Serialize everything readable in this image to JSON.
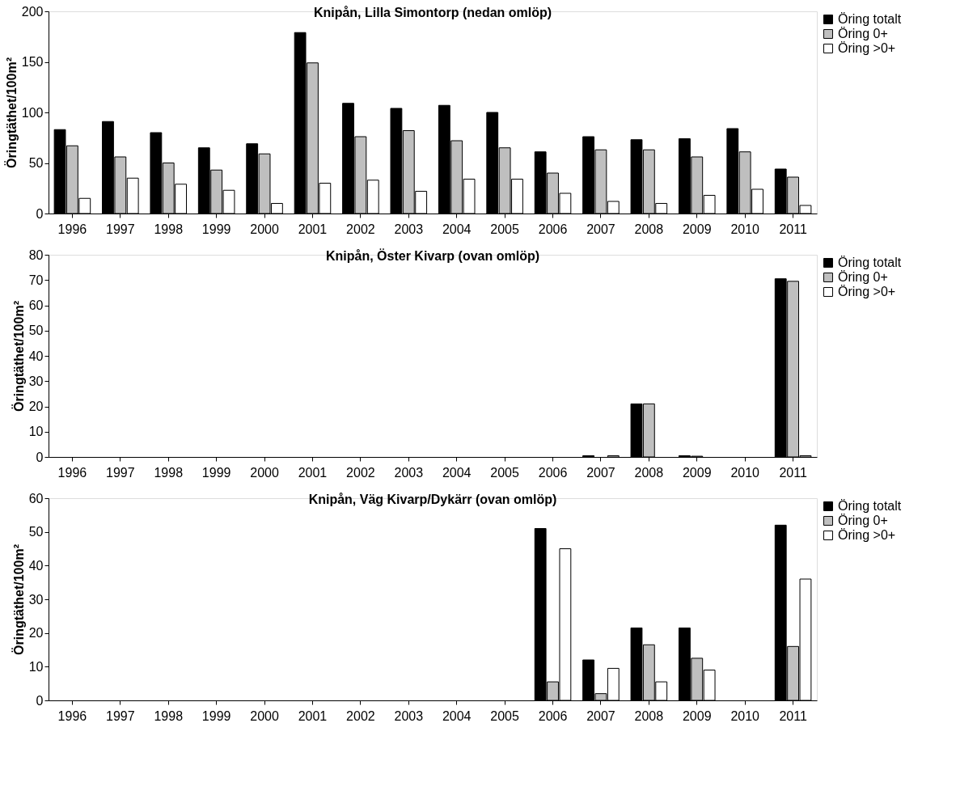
{
  "chart_data": [
    {
      "type": "bar",
      "title": "Knipån, Lilla  Simontorp (nedan omlöp)",
      "ylabel": "Öringtäthet/100m²",
      "categories": [
        "1996",
        "1997",
        "1998",
        "1999",
        "2000",
        "2001",
        "2002",
        "2003",
        "2004",
        "2005",
        "2006",
        "2007",
        "2008",
        "2009",
        "2010",
        "2011"
      ],
      "ylim": [
        0,
        200
      ],
      "yticks": [
        0,
        50,
        100,
        150,
        200
      ],
      "legend": "top right",
      "grid": false,
      "series": [
        {
          "name": "Öring totalt",
          "color": "#000000",
          "values": [
            83,
            91,
            80,
            65,
            69,
            179,
            109,
            104,
            107,
            100,
            61,
            76,
            73,
            74,
            84,
            44
          ]
        },
        {
          "name": "Öring 0+",
          "color": "#bfbfbf",
          "values": [
            67,
            56,
            50,
            43,
            59,
            149,
            76,
            82,
            72,
            65,
            40,
            63,
            63,
            56,
            61,
            36
          ]
        },
        {
          "name": "Öring >0+",
          "color": "#ffffff",
          "values": [
            15,
            35,
            29,
            23,
            10,
            30,
            33,
            22,
            34,
            34,
            20,
            12,
            10,
            18,
            24,
            8
          ]
        }
      ]
    },
    {
      "type": "bar",
      "title": "Knipån, Öster Kivarp (ovan omlöp)",
      "ylabel": "Öringtäthet/100m²",
      "categories": [
        "1996",
        "1997",
        "1998",
        "1999",
        "2000",
        "2001",
        "2002",
        "2003",
        "2004",
        "2005",
        "2006",
        "2007",
        "2008",
        "2009",
        "2010",
        "2011"
      ],
      "ylim": [
        0,
        80
      ],
      "yticks": [
        0,
        10,
        20,
        30,
        40,
        50,
        60,
        70,
        80
      ],
      "legend": "top right",
      "grid": false,
      "series": [
        {
          "name": "Öring totalt",
          "color": "#000000",
          "values": [
            null,
            null,
            null,
            null,
            null,
            null,
            null,
            null,
            null,
            null,
            null,
            0.5,
            21,
            0.5,
            null,
            70.5
          ]
        },
        {
          "name": "Öring 0+",
          "color": "#bfbfbf",
          "values": [
            null,
            null,
            null,
            null,
            null,
            null,
            null,
            null,
            null,
            null,
            null,
            null,
            21,
            0.3,
            null,
            69.5
          ]
        },
        {
          "name": "Öring >0+",
          "color": "#ffffff",
          "values": [
            null,
            null,
            null,
            null,
            null,
            null,
            null,
            null,
            null,
            null,
            null,
            0.5,
            null,
            null,
            null,
            0.5
          ]
        }
      ]
    },
    {
      "type": "bar",
      "title": "Knipån, Väg Kivarp/Dykärr (ovan omlöp)",
      "ylabel": "Öringtäthet/100m²",
      "categories": [
        "1996",
        "1997",
        "1998",
        "1999",
        "2000",
        "2001",
        "2002",
        "2003",
        "2004",
        "2005",
        "2006",
        "2007",
        "2008",
        "2009",
        "2010",
        "2011"
      ],
      "ylim": [
        0,
        60
      ],
      "yticks": [
        0,
        10,
        20,
        30,
        40,
        50,
        60
      ],
      "legend": "top right",
      "grid": false,
      "series": [
        {
          "name": "Öring totalt",
          "color": "#000000",
          "values": [
            null,
            null,
            null,
            null,
            null,
            null,
            null,
            null,
            null,
            null,
            51,
            12,
            21.5,
            21.5,
            null,
            52
          ]
        },
        {
          "name": "Öring 0+",
          "color": "#bfbfbf",
          "values": [
            null,
            null,
            null,
            null,
            null,
            null,
            null,
            null,
            null,
            null,
            5.5,
            2,
            16.5,
            12.5,
            null,
            16
          ]
        },
        {
          "name": "Öring >0+",
          "color": "#ffffff",
          "values": [
            null,
            null,
            null,
            null,
            null,
            null,
            null,
            null,
            null,
            null,
            45,
            9.5,
            5.5,
            9,
            null,
            36
          ]
        }
      ]
    }
  ]
}
